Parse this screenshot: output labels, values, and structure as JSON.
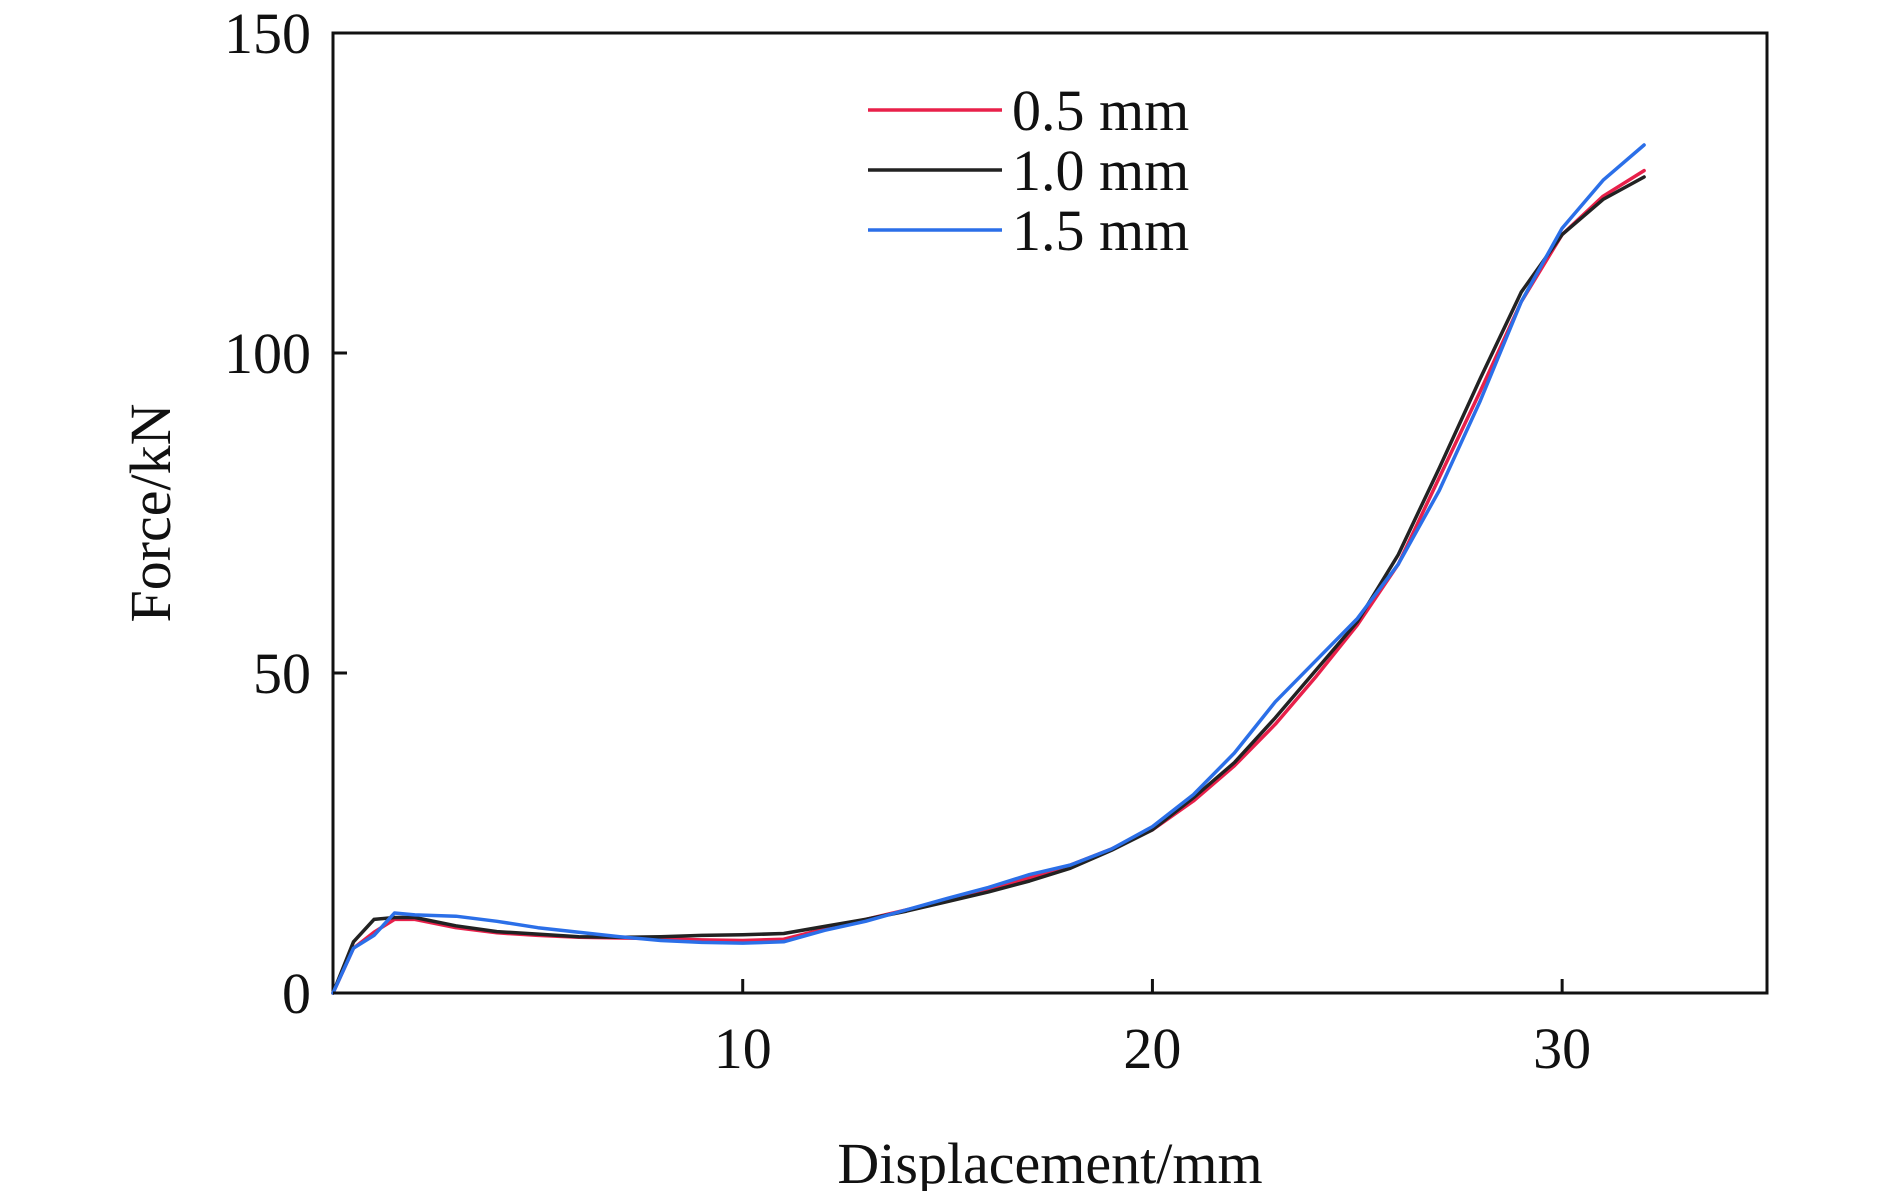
{
  "chart_data": {
    "type": "line",
    "title": "",
    "xlabel": "Displacement/mm",
    "ylabel": "Force/kN",
    "xlim": [
      0,
      35
    ],
    "ylim": [
      0,
      150
    ],
    "xticks": [
      10,
      20,
      30
    ],
    "yticks": [
      0,
      50,
      100,
      150
    ],
    "grid": false,
    "legend_position": "top-center",
    "series": [
      {
        "name": "0.5 mm",
        "color": "#e8204a",
        "x": [
          0,
          0.5,
          1,
          1.5,
          2,
          3,
          4,
          5,
          6,
          7,
          8,
          9,
          10,
          11,
          12,
          13,
          14,
          15,
          16,
          17,
          18,
          19,
          20,
          21,
          22,
          23,
          24,
          25,
          26,
          27,
          28,
          29,
          30,
          31,
          32
        ],
        "y": [
          0,
          7,
          9.5,
          11.5,
          11.5,
          10.2,
          9.4,
          9,
          8.7,
          8.6,
          8.5,
          8.3,
          8.2,
          8.4,
          10,
          11.5,
          13,
          14.5,
          16.2,
          18,
          20,
          22.5,
          25.5,
          30,
          35.5,
          42,
          49.5,
          57.5,
          67,
          80.5,
          94,
          108,
          118.5,
          124.5,
          128.5
        ]
      },
      {
        "name": "1.0 mm",
        "color": "#222222",
        "x": [
          0,
          0.5,
          1,
          1.5,
          2,
          3,
          4,
          5,
          6,
          7,
          8,
          9,
          10,
          11,
          12,
          13,
          14,
          15,
          16,
          17,
          18,
          19,
          20,
          21,
          22,
          23,
          24,
          25,
          26,
          27,
          28,
          29,
          30,
          31,
          32
        ],
        "y": [
          0,
          8,
          11.5,
          11.8,
          11.8,
          10.5,
          9.6,
          9.2,
          8.8,
          8.7,
          8.8,
          9,
          9.1,
          9.3,
          10.4,
          11.5,
          12.8,
          14.3,
          15.8,
          17.5,
          19.5,
          22.3,
          25.5,
          30.5,
          36,
          43,
          50.5,
          58,
          68.5,
          82,
          96,
          109.5,
          118.5,
          124,
          127.5
        ]
      },
      {
        "name": "1.5 mm",
        "color": "#2b6fe8",
        "x": [
          0,
          0.5,
          1,
          1.5,
          2,
          3,
          4,
          5,
          6,
          7,
          8,
          9,
          10,
          11,
          12,
          13,
          14,
          15,
          16,
          17,
          18,
          19,
          20,
          21,
          22,
          23,
          24,
          25,
          26,
          27,
          28,
          29,
          30,
          31,
          32
        ],
        "y": [
          0,
          7,
          9,
          12.5,
          12.2,
          12,
          11.2,
          10.2,
          9.5,
          8.8,
          8.2,
          7.9,
          7.8,
          8,
          9.8,
          11.2,
          13,
          14.8,
          16.5,
          18.5,
          20,
          22.5,
          26,
          31,
          37.5,
          45.5,
          52,
          58.5,
          67,
          78.5,
          92.5,
          108,
          119.5,
          127,
          132.5
        ]
      }
    ]
  }
}
